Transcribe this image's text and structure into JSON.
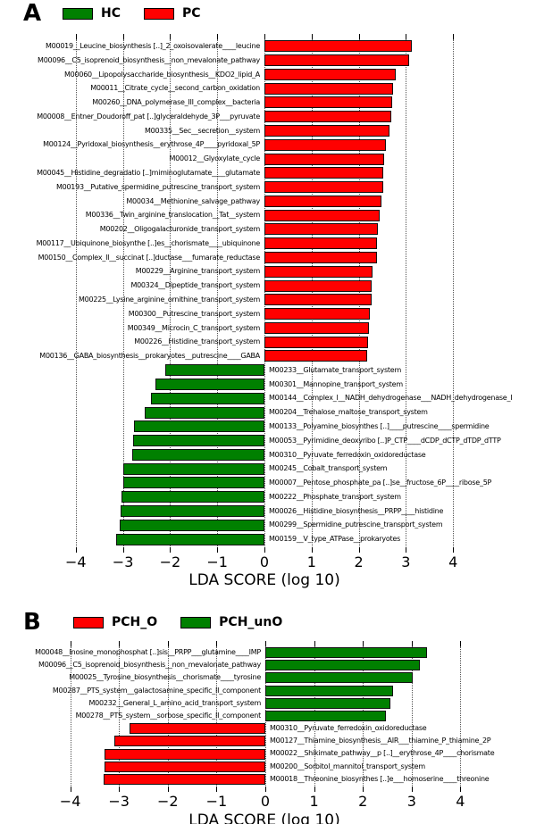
{
  "figure": {
    "axis_title": "LDA SCORE (log 10)"
  },
  "chart_data": [
    {
      "panel": "A",
      "type": "bar",
      "orientation": "horizontal",
      "xlabel": "LDA SCORE (log 10)",
      "xlim": [
        -4.5,
        4.5
      ],
      "xticks": [
        -4,
        -3,
        -2,
        -1,
        0,
        1,
        2,
        3,
        4
      ],
      "xtick_labels": [
        "−4",
        "−3",
        "−2",
        "−1",
        "0",
        "1",
        "2",
        "3",
        "4"
      ],
      "grid": "dotted-vertical",
      "legend_position": "top",
      "legend": [
        {
          "label": "HC",
          "color": "#008000"
        },
        {
          "label": "PC",
          "color": "#ff0000"
        }
      ],
      "bars": [
        {
          "label": "M00019__Leucine_biosynthesis [..]_2_oxoisovalerate____leucine",
          "value": 3.12,
          "group": "PC"
        },
        {
          "label": "M00096__C5_isoprenoid_biosynthesis__non_mevalonate_pathway",
          "value": 3.06,
          "group": "PC"
        },
        {
          "label": "M00060__Lipopolysaccharide_biosynthesis__KDO2_lipid_A",
          "value": 2.79,
          "group": "PC"
        },
        {
          "label": "M00011__Citrate_cycle__second_carbon_oxidation",
          "value": 2.72,
          "group": "PC"
        },
        {
          "label": "M00260__DNA_polymerase_III_complex__bacteria",
          "value": 2.7,
          "group": "PC"
        },
        {
          "label": "M00008__Entner_Doudoroff_pat [..]glyceraldehyde_3P___pyruvate",
          "value": 2.68,
          "group": "PC"
        },
        {
          "label": "M00335__Sec__secretion__system",
          "value": 2.66,
          "group": "PC"
        },
        {
          "label": "M00124__Pyridoxal_biosynthesis__erythrose_4P____pyridoxal_5P",
          "value": 2.57,
          "group": "PC"
        },
        {
          "label": "M00012__Glyoxylate_cycle",
          "value": 2.54,
          "group": "PC"
        },
        {
          "label": "M00045__Histidine_degradatio [..]miminoglutamate____glutamate",
          "value": 2.52,
          "group": "PC"
        },
        {
          "label": "M00193__Putative_spermidine_putrescine_transport_system",
          "value": 2.51,
          "group": "PC"
        },
        {
          "label": "M00034__Methionine_salvage_pathway",
          "value": 2.48,
          "group": "PC"
        },
        {
          "label": "M00336__Twin_arginine_translocation__Tat__system",
          "value": 2.44,
          "group": "PC"
        },
        {
          "label": "M00202__Oligogalacturonide_transport_system",
          "value": 2.41,
          "group": "PC"
        },
        {
          "label": "M00117__Ubiquinone_biosynthe [..]es__chorismate____ubiquinone",
          "value": 2.39,
          "group": "PC"
        },
        {
          "label": "M00150__Complex_II__succinat [..]ductase___fumarate_reductase",
          "value": 2.38,
          "group": "PC"
        },
        {
          "label": "M00229__Arginine_transport_system",
          "value": 2.3,
          "group": "PC"
        },
        {
          "label": "M00324__Dipeptide_transport_system",
          "value": 2.28,
          "group": "PC"
        },
        {
          "label": "M00225__Lysine_arginine_ornithine_transport_system",
          "value": 2.27,
          "group": "PC"
        },
        {
          "label": "M00300__Putrescine_transport_system",
          "value": 2.23,
          "group": "PC"
        },
        {
          "label": "M00349__Microcin_C_transport_system",
          "value": 2.22,
          "group": "PC"
        },
        {
          "label": "M00226__Histidine_transport_system",
          "value": 2.2,
          "group": "PC"
        },
        {
          "label": "M00136__GABA_biosynthesis__prokaryotes__putrescine____GABA",
          "value": 2.17,
          "group": "PC"
        },
        {
          "label": "M00233__Glutamate_transport_system",
          "value": -2.1,
          "group": "HC"
        },
        {
          "label": "M00301__Mannopine_transport_system",
          "value": -2.32,
          "group": "HC"
        },
        {
          "label": "M00144__Complex_I__NADH_dehydrogenase___NADH_dehydrogenase_I",
          "value": -2.41,
          "group": "HC"
        },
        {
          "label": "M00204__Trehalose_maltose_transport_system",
          "value": -2.53,
          "group": "HC"
        },
        {
          "label": "M00133__Polyamine_biosynthes [..]____putrescine____spermidine",
          "value": -2.77,
          "group": "HC"
        },
        {
          "label": "M00053__Pyrimidine_deoxyribo [..]P_CTP____dCDP_dCTP_dTDP_dTTP",
          "value": -2.78,
          "group": "HC"
        },
        {
          "label": "M00310__Pyruvate_ferredoxin_oxidoreductase",
          "value": -2.81,
          "group": "HC"
        },
        {
          "label": "M00245__Cobalt_transport_system",
          "value": -2.99,
          "group": "HC"
        },
        {
          "label": "M00007__Pentose_phosphate_pa [..]se__fructose_6P____ribose_5P",
          "value": -3.0,
          "group": "HC"
        },
        {
          "label": "M00222__Phosphate_transport_system",
          "value": -3.03,
          "group": "HC"
        },
        {
          "label": "M00026__Histidine_biosynthesis__PRPP____histidine",
          "value": -3.05,
          "group": "HC"
        },
        {
          "label": "M00299__Spermidine_putrescine_transport_system",
          "value": -3.06,
          "group": "HC"
        },
        {
          "label": "M00159__V_type_ATPase__prokaryotes",
          "value": -3.14,
          "group": "HC"
        }
      ]
    },
    {
      "panel": "B",
      "type": "bar",
      "orientation": "horizontal",
      "xlabel": "LDA SCORE (log 10)",
      "xlim": [
        -4.5,
        4.5
      ],
      "xticks": [
        -4,
        -3,
        -2,
        -1,
        0,
        1,
        2,
        3,
        4
      ],
      "xtick_labels": [
        "−4",
        "−3",
        "−2",
        "−1",
        "0",
        "1",
        "2",
        "3",
        "4"
      ],
      "grid": "dotted-vertical",
      "legend_position": "top",
      "legend": [
        {
          "label": "PCH_O",
          "color": "#ff0000"
        },
        {
          "label": "PCH_unO",
          "color": "#008000"
        }
      ],
      "bars": [
        {
          "label": "M00048__Inosine_monophosphat [..]sis__PRPP___glutamine____IMP",
          "value": 3.32,
          "group": "PCH_unO"
        },
        {
          "label": "M00096__C5_isoprenoid_biosynthesis__non_mevalonate_pathway",
          "value": 3.17,
          "group": "PCH_unO"
        },
        {
          "label": "M00025__Tyrosine_biosynthesis__chorismate____tyrosine",
          "value": 3.02,
          "group": "PCH_unO"
        },
        {
          "label": "M00287__PTS_system__galactosamine_specific_II_component",
          "value": 2.61,
          "group": "PCH_unO"
        },
        {
          "label": "M00232__General_L_amino_acid_transport_system",
          "value": 2.57,
          "group": "PCH_unO"
        },
        {
          "label": "M00278__PTS_system__sorbose_specific_II_component",
          "value": 2.47,
          "group": "PCH_unO"
        },
        {
          "label": "M00310__Pyruvate_ferredoxin_oxidoreductase",
          "value": -2.78,
          "group": "PCH_O"
        },
        {
          "label": "M00127__Thiamine_biosynthesis__AIR___thiamine_P_thiamine_2P",
          "value": -3.09,
          "group": "PCH_O"
        },
        {
          "label": "M00022__Shikimate_pathway__p [..]__erythrose_4P____chorismate",
          "value": -3.29,
          "group": "PCH_O"
        },
        {
          "label": "M00200__Sorbitol_mannitol_transport_system",
          "value": -3.3,
          "group": "PCH_O"
        },
        {
          "label": "M00018__Threonine_biosynthes [..]e___homoserine____threonine",
          "value": -3.32,
          "group": "PCH_O"
        }
      ]
    }
  ]
}
